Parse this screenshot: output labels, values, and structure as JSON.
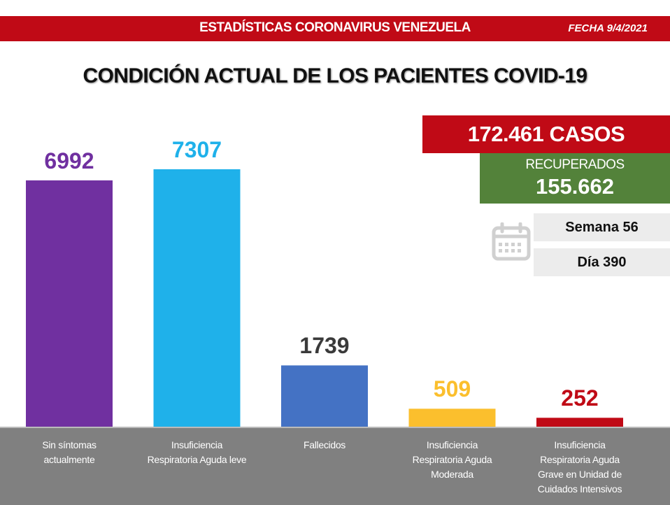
{
  "header": {
    "title": "ESTADÍSTICAS CORONAVIRUS VENEZUELA",
    "date": "FECHA 9/4/2021",
    "color": "#c00a16"
  },
  "summary": {
    "total_cases": "172.461 CASOS",
    "recovered_label": "RECUPERADOS",
    "recovered_value": "155.662",
    "week": "Semana 56",
    "day": "Día 390",
    "calendar_icon": "calendar-icon"
  },
  "chart_data": {
    "type": "bar",
    "title": "CONDICIÓN ACTUAL DE LOS PACIENTES COVID-19",
    "xlabel": "",
    "ylabel": "",
    "grid": false,
    "ylim": [
      0,
      7307
    ],
    "categories": [
      [
        "Sin síntomas",
        "actualmente"
      ],
      [
        "Insuficiencia",
        "Respiratoria Aguda leve"
      ],
      [
        "Fallecidos"
      ],
      [
        "Insuficiencia",
        "Respiratoria Aguda",
        "Moderada"
      ],
      [
        "Insuficiencia",
        "Respiratoria Aguda",
        "Grave en Unidad de",
        "Cuidados Intensivos"
      ]
    ],
    "values": [
      6992,
      7307,
      1739,
      509,
      252
    ],
    "value_labels": [
      "6992",
      "7307",
      "1739",
      "509",
      "252"
    ],
    "colors": [
      "#7030a0",
      "#1fb1ea",
      "#4472c4",
      "#fbbf2d",
      "#c00a16"
    ],
    "label_colors": [
      "#7030a0",
      "#1fb1ea",
      "#3a3a3a",
      "#fbbf2d",
      "#c00a16"
    ]
  }
}
